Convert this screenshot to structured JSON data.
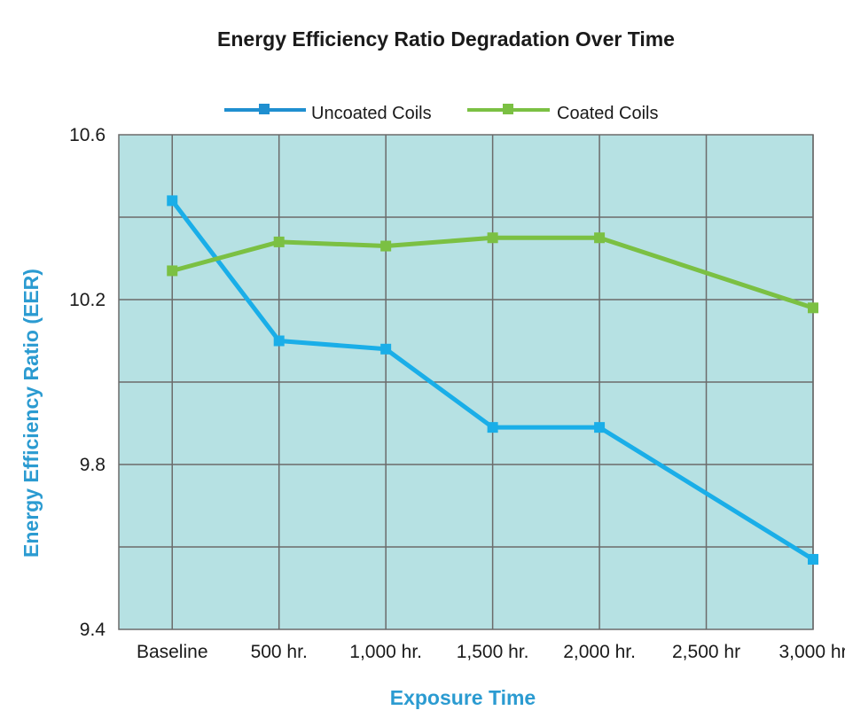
{
  "chart_data": {
    "type": "line",
    "title": "Energy Efficiency Ratio Degradation Over Time",
    "xlabel": "Exposure Time",
    "ylabel": "Energy Efficiency Ratio (EER)",
    "categories": [
      "Baseline",
      "500 hr.",
      "1,000 hr.",
      "1,500 hr.",
      "2,000 hr.",
      "2,500 hr",
      "3,000 hr"
    ],
    "ylim": [
      9.4,
      10.6
    ],
    "yticks": [
      "9.4",
      "9.8",
      "10.2",
      "10.6"
    ],
    "grid": true,
    "legend_position": "top",
    "plot_background": "#b6e1e3",
    "axis_label_color": "#2b9bd1",
    "series": [
      {
        "name": "Uncoated Coils",
        "color": "#1aaee8",
        "legend_color": "#1f8fd0",
        "values": [
          10.44,
          10.1,
          10.08,
          9.89,
          9.89,
          null,
          9.57
        ]
      },
      {
        "name": "Coated Coils",
        "color": "#7bc043",
        "legend_color": "#7bc043",
        "values": [
          10.27,
          10.34,
          10.33,
          10.35,
          10.35,
          null,
          10.18
        ]
      }
    ]
  }
}
